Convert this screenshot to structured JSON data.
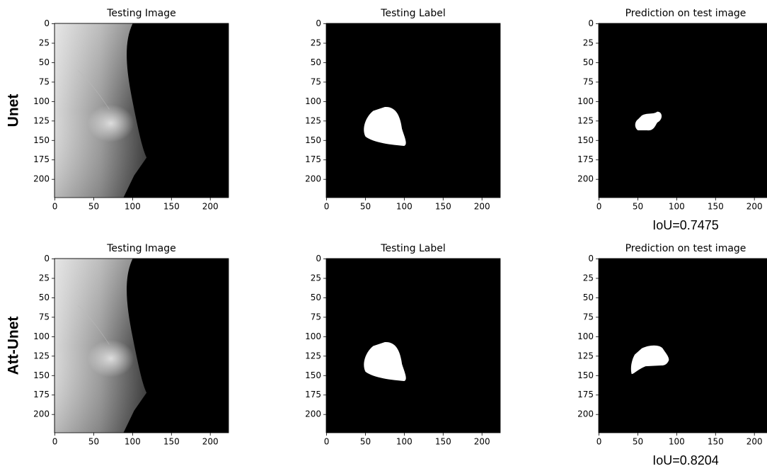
{
  "row_labels": [
    "Unet",
    "Att-Unet"
  ],
  "chart_data": [
    {
      "type": "image",
      "title": "Testing Image",
      "xlim": [
        -0.5,
        223.5
      ],
      "ylim": [
        223.5,
        -0.5
      ],
      "xticks": [
        0,
        50,
        100,
        150,
        200
      ],
      "yticks": [
        0,
        25,
        50,
        75,
        100,
        125,
        150,
        175,
        200
      ]
    },
    {
      "type": "image",
      "title": "Testing Label",
      "xlim": [
        -0.5,
        223.5
      ],
      "ylim": [
        223.5,
        -0.5
      ],
      "xticks": [
        0,
        50,
        100,
        150,
        200
      ],
      "yticks": [
        0,
        25,
        50,
        75,
        100,
        125,
        150,
        175,
        200
      ]
    },
    {
      "type": "image",
      "title": "Prediction on test image",
      "xlim": [
        -0.5,
        223.5
      ],
      "ylim": [
        223.5,
        -0.5
      ],
      "xticks": [
        0,
        50,
        100,
        150,
        200
      ],
      "yticks": [
        0,
        25,
        50,
        75,
        100,
        125,
        150,
        175,
        200
      ],
      "annotation": "IoU=0.7475"
    },
    {
      "type": "image",
      "title": "Testing Image",
      "xlim": [
        -0.5,
        223.5
      ],
      "ylim": [
        223.5,
        -0.5
      ],
      "xticks": [
        0,
        50,
        100,
        150,
        200
      ],
      "yticks": [
        0,
        25,
        50,
        75,
        100,
        125,
        150,
        175,
        200
      ]
    },
    {
      "type": "image",
      "title": "Testing Label",
      "xlim": [
        -0.5,
        223.5
      ],
      "ylim": [
        223.5,
        -0.5
      ],
      "xticks": [
        0,
        50,
        100,
        150,
        200
      ],
      "yticks": [
        0,
        25,
        50,
        75,
        100,
        125,
        150,
        175,
        200
      ]
    },
    {
      "type": "image",
      "title": "Prediction on test image",
      "xlim": [
        -0.5,
        223.5
      ],
      "ylim": [
        223.5,
        -0.5
      ],
      "xticks": [
        0,
        50,
        100,
        150,
        200
      ],
      "yticks": [
        0,
        25,
        50,
        75,
        100,
        125,
        150,
        175,
        200
      ],
      "annotation": "IoU=0.8204"
    }
  ]
}
